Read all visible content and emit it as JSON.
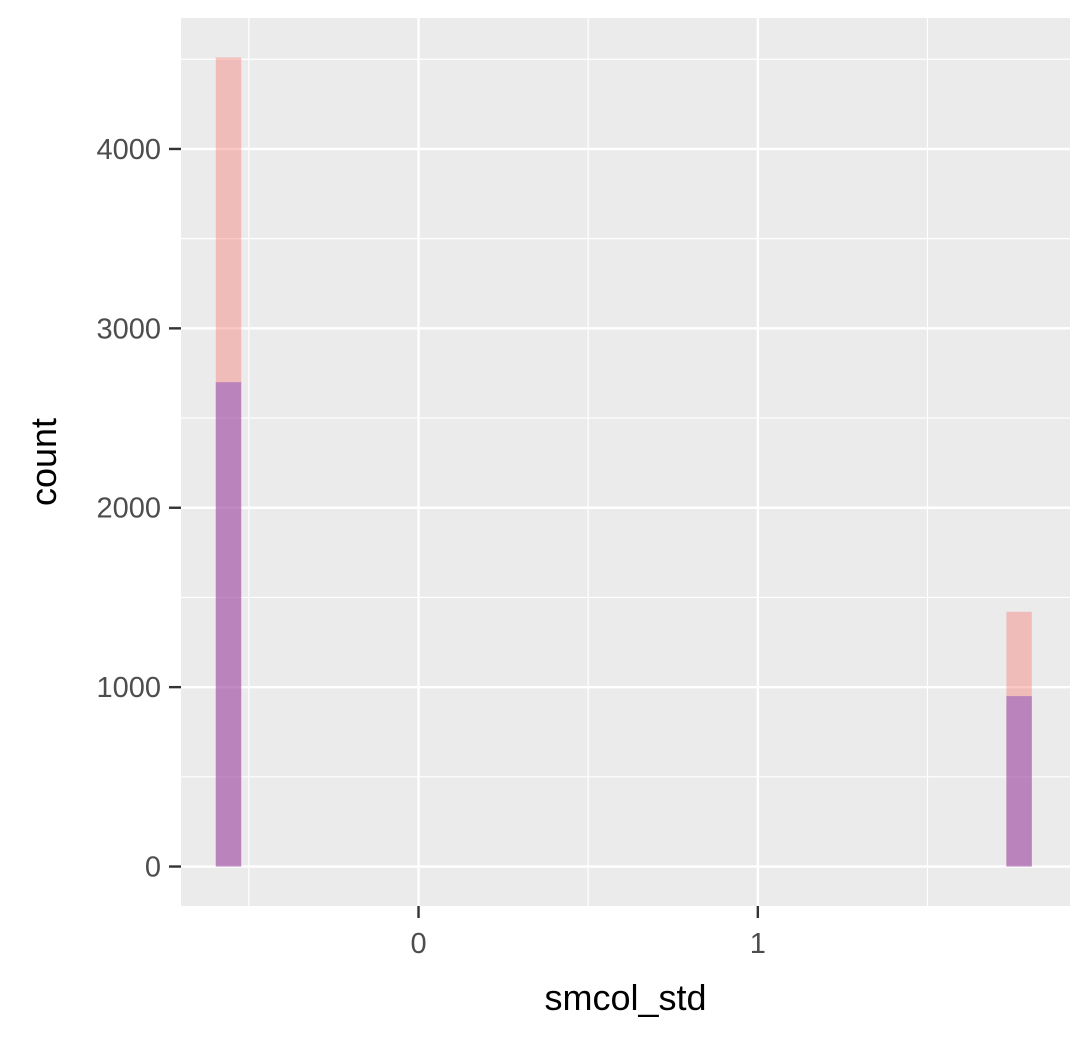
{
  "chart_data": {
    "type": "bar",
    "subtype": "overlaid-histogram",
    "title": "",
    "xlabel": "smcol_std",
    "ylabel": "count",
    "xlim": [
      -0.7,
      1.92
    ],
    "ylim": [
      -220,
      4730
    ],
    "x_ticks": [
      0,
      1
    ],
    "x_tick_labels": [
      "0",
      "1"
    ],
    "y_ticks": [
      0,
      1000,
      2000,
      3000,
      4000
    ],
    "y_tick_labels": [
      "0",
      "1000",
      "2000",
      "3000",
      "4000"
    ],
    "grid": true,
    "legend": "none",
    "bin_width": 0.075,
    "series": [
      {
        "color": "#F8766D",
        "opacity": 0.4,
        "bins": [
          {
            "x_center": -0.56,
            "count": 4510
          },
          {
            "x_center": 1.77,
            "count": 1420
          }
        ]
      },
      {
        "color": "#7B3FBF",
        "opacity": 0.45,
        "bins": [
          {
            "x_center": -0.56,
            "count": 2700
          },
          {
            "x_center": 1.77,
            "count": 950
          }
        ]
      }
    ],
    "colors": {
      "panel_background": "#EBEBEB",
      "grid": "#FFFFFF",
      "tick_text": "#4D4D4D",
      "axis_title": "#000000"
    }
  }
}
